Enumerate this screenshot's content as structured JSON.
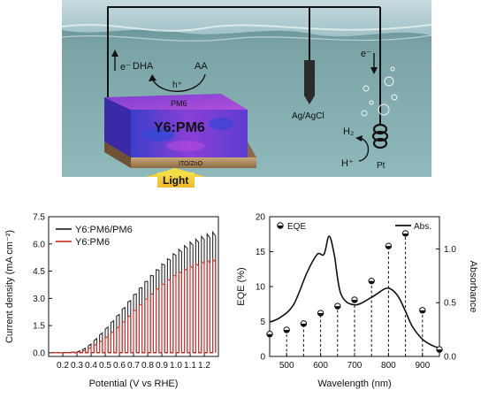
{
  "schematic": {
    "electron_left": "e⁻",
    "dha": "DHA",
    "aa": "AA",
    "hole": "h⁺",
    "pm6": "PM6",
    "y6pm6": "Y6:PM6",
    "ito": "ITO/ZnO",
    "light": "Light",
    "ref_electrode": "Ag/AgCl",
    "electron_right": "e⁻",
    "h2": "H₂",
    "hplus": "H⁺",
    "pt": "Pt"
  },
  "chart_data": [
    {
      "type": "line",
      "xlabel": "Potential (V vs RHE)",
      "ylabel": "Current density (mA cm⁻²)",
      "xlim": [
        0.1,
        1.3
      ],
      "ylim": [
        -0.2,
        7.5
      ],
      "xticks": [
        "0.2",
        "0.3",
        "0.4",
        "0.5",
        "0.6",
        "0.7",
        "0.8",
        "0.9",
        "1.0",
        "1.1",
        "1.2"
      ],
      "yticks": [
        "0.0",
        "1.5",
        "3.0",
        "4.5",
        "6.0",
        "7.5"
      ],
      "legend_position": "top-left",
      "chopped_light": true,
      "series": [
        {
          "name": "Y6:PM6/PM6",
          "color": "#2b2b2b",
          "envelope_x": [
            0.2,
            0.3,
            0.35,
            0.4,
            0.5,
            0.6,
            0.7,
            0.8,
            0.9,
            1.0,
            1.1,
            1.2,
            1.28
          ],
          "envelope_y": [
            0.0,
            0.05,
            0.2,
            0.5,
            1.3,
            2.2,
            3.2,
            4.1,
            4.9,
            5.6,
            6.1,
            6.5,
            6.7
          ]
        },
        {
          "name": "Y6:PM6",
          "color": "#d9342b",
          "envelope_x": [
            0.2,
            0.3,
            0.35,
            0.4,
            0.5,
            0.6,
            0.7,
            0.8,
            0.9,
            1.0,
            1.1,
            1.2,
            1.28
          ],
          "envelope_y": [
            0.0,
            0.03,
            0.1,
            0.3,
            0.8,
            1.5,
            2.3,
            3.1,
            3.8,
            4.4,
            4.8,
            5.1,
            5.2
          ]
        }
      ]
    },
    {
      "type": "scatter",
      "xlabel": "Wavelength (nm)",
      "ylabel": "EQE (%)",
      "ylabel_right": "Absorbance",
      "xlim": [
        450,
        950
      ],
      "ylim": [
        0,
        20
      ],
      "ylim_right": [
        0,
        1.3
      ],
      "xticks": [
        "500",
        "600",
        "700",
        "800",
        "900"
      ],
      "yticks": [
        "0",
        "5",
        "10",
        "15",
        "20"
      ],
      "yticks_right": [
        "0.0",
        "0.5",
        "1.0"
      ],
      "legend": [
        "EQE",
        "Abs."
      ],
      "series": [
        {
          "name": "EQE",
          "x": [
            450,
            500,
            550,
            600,
            650,
            700,
            750,
            800,
            850,
            900,
            950
          ],
          "y": [
            3.2,
            3.8,
            4.7,
            6.2,
            7.2,
            8.1,
            10.8,
            15.8,
            17.6,
            6.6,
            1.0
          ]
        },
        {
          "name": "Abs.",
          "x": [
            450,
            480,
            520,
            560,
            590,
            610,
            625,
            640,
            660,
            700,
            750,
            790,
            810,
            830,
            850,
            870,
            900,
            930,
            950
          ],
          "y": [
            0.32,
            0.36,
            0.48,
            0.78,
            0.95,
            0.95,
            1.12,
            0.95,
            0.58,
            0.48,
            0.55,
            0.63,
            0.62,
            0.55,
            0.42,
            0.28,
            0.16,
            0.1,
            0.08
          ]
        }
      ]
    }
  ]
}
